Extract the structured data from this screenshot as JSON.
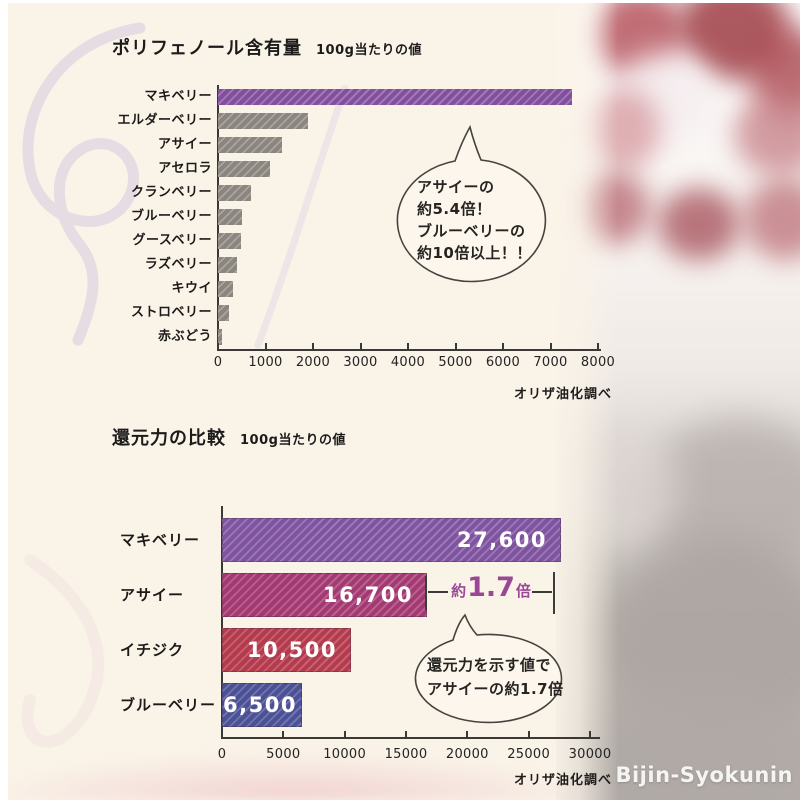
{
  "page": {
    "watermark": "Bijin-Syokunin"
  },
  "chart_data": [
    {
      "type": "bar",
      "orientation": "horizontal",
      "title": "ポリフェノール含有量",
      "subtitle": "100g当たりの値",
      "source": "オリザ油化調べ",
      "categories": [
        "マキベリー",
        "エルダーベリー",
        "アサイー",
        "アセロラ",
        "クランベリー",
        "ブルーベリー",
        "グースベリー",
        "ラズベリー",
        "キウイ",
        "ストロベリー",
        "赤ぶどう"
      ],
      "values": [
        7450,
        1900,
        1350,
        1100,
        700,
        500,
        480,
        400,
        320,
        230,
        80
      ],
      "xlim": [
        0,
        8000
      ],
      "xticks": [
        0,
        1000,
        2000,
        3000,
        4000,
        5000,
        6000,
        7000,
        8000
      ],
      "highlight_index": 0,
      "colors": {
        "default": {
          "base": "#8b8580",
          "light": "#aaa49e"
        },
        "highlight": {
          "base": "#82509b",
          "light": "#a278bc"
        }
      },
      "annotation": {
        "lines": [
          "アサイーの",
          "約5.4倍！",
          "ブルーベリーの",
          "約10倍以上！！"
        ]
      }
    },
    {
      "type": "bar",
      "orientation": "horizontal",
      "title": "還元力の比較",
      "subtitle": "100g当たりの値",
      "source": "オリザ油化調べ",
      "categories": [
        "マキベリー",
        "アサイー",
        "イチジク",
        "ブルーベリー"
      ],
      "values": [
        27600,
        16700,
        10500,
        6500
      ],
      "value_labels": [
        "27,600",
        "16,700",
        "10,500",
        "6,500"
      ],
      "xlim": [
        0,
        30000
      ],
      "xticks": [
        0,
        5000,
        10000,
        15000,
        20000,
        25000,
        30000
      ],
      "colors": {
        "bars": [
          {
            "base": "#7e549d",
            "light": "#9c77bb"
          },
          {
            "base": "#a23a72",
            "light": "#bb5f90"
          },
          {
            "base": "#b23b4d",
            "light": "#c8606f"
          },
          {
            "base": "#4c5194",
            "light": "#6f74b0"
          }
        ]
      },
      "bracket": {
        "prefix": "約",
        "number": "1.7",
        "suffix": "倍",
        "color": "#9a4796"
      },
      "annotation": {
        "lines": [
          "還元力を示す値で",
          "アサイーの約1.7倍"
        ]
      }
    }
  ]
}
